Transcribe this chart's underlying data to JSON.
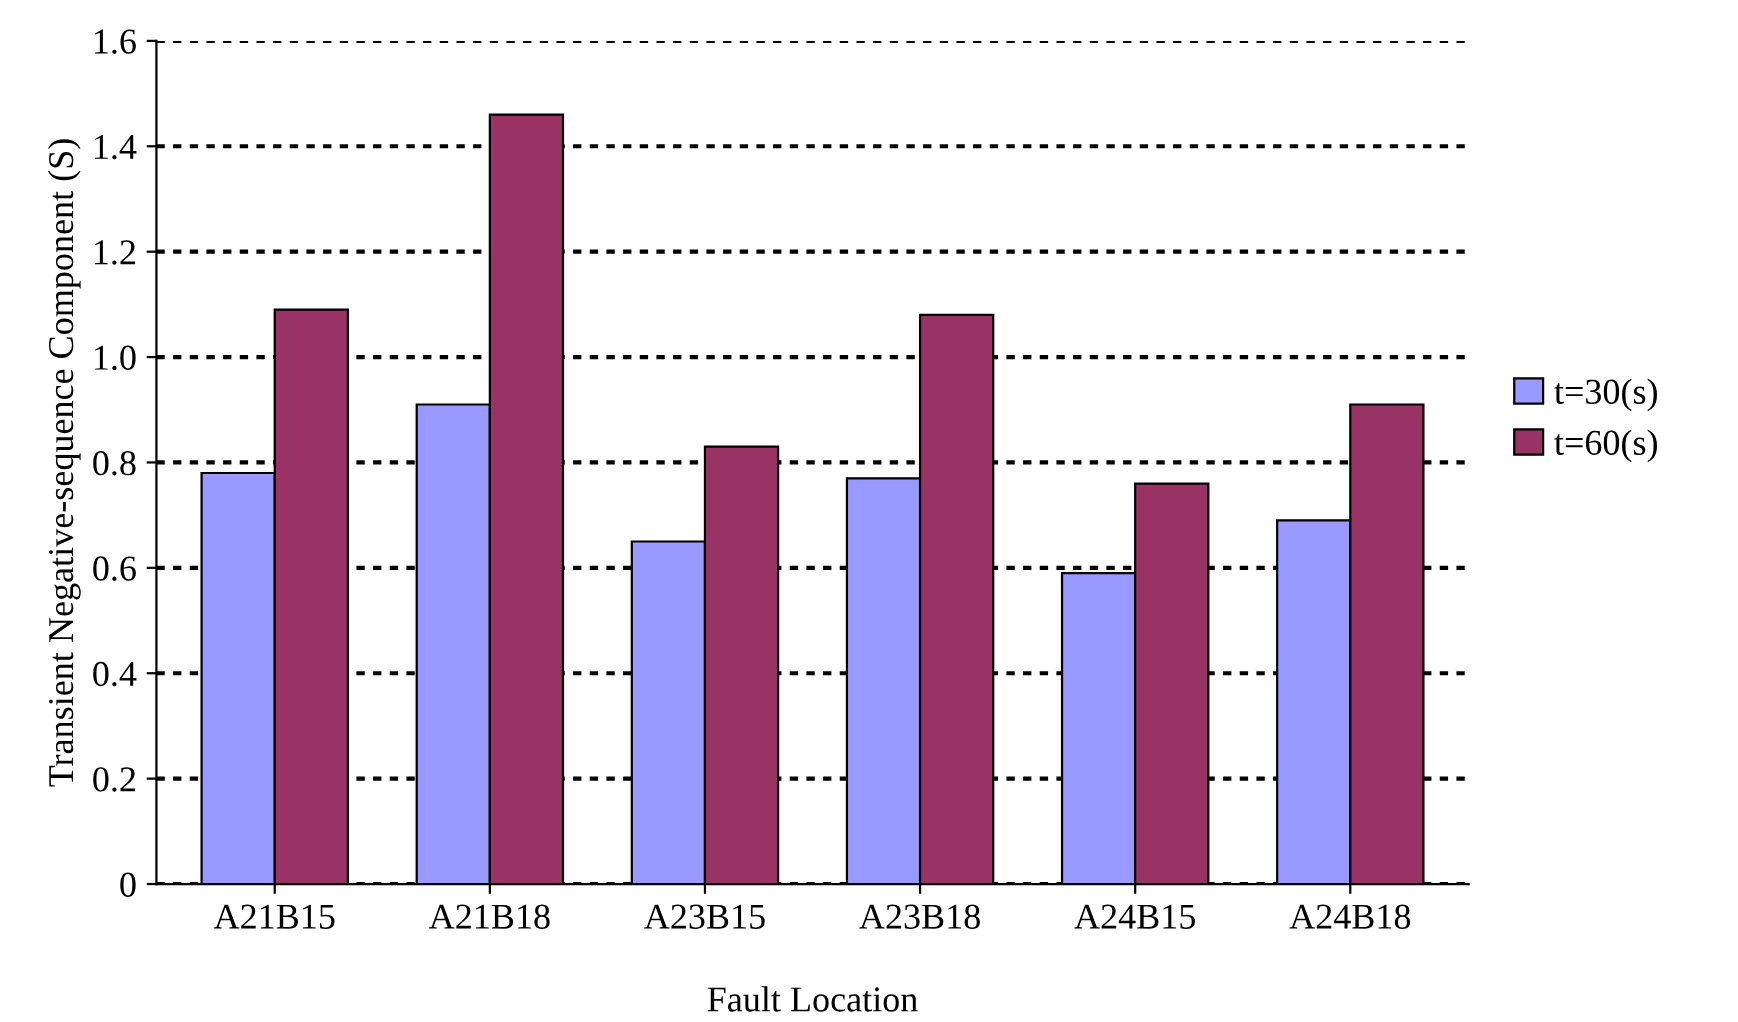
{
  "chart_data": {
    "type": "bar",
    "xlabel": "Fault Location",
    "ylabel": "Transient Negative-sequence Component (S)",
    "categories": [
      "A21B15",
      "A21B18",
      "A23B15",
      "A23B18",
      "A24B15",
      "A24B18"
    ],
    "series": [
      {
        "name": "t=30(s)",
        "color": "#9999ff",
        "values": [
          0.78,
          0.91,
          0.65,
          0.77,
          0.59,
          0.69
        ]
      },
      {
        "name": "t=60(s)",
        "color": "#993366",
        "values": [
          1.09,
          1.46,
          0.83,
          1.08,
          0.76,
          0.91
        ]
      }
    ],
    "ylim": [
      0,
      1.6
    ],
    "yticks": [
      {
        "value": 0,
        "label": "0"
      },
      {
        "value": 0.2,
        "label": "0.2"
      },
      {
        "value": 0.4,
        "label": "0.4"
      },
      {
        "value": 0.6,
        "label": "0.6"
      },
      {
        "value": 0.8,
        "label": "0.8"
      },
      {
        "value": 1.0,
        "label": "1.0"
      },
      {
        "value": 1.2,
        "label": "1.2"
      },
      {
        "value": 1.4,
        "label": "1.4"
      },
      {
        "value": 1.6,
        "label": "1.6"
      }
    ],
    "grid": "y",
    "legend": "right"
  }
}
